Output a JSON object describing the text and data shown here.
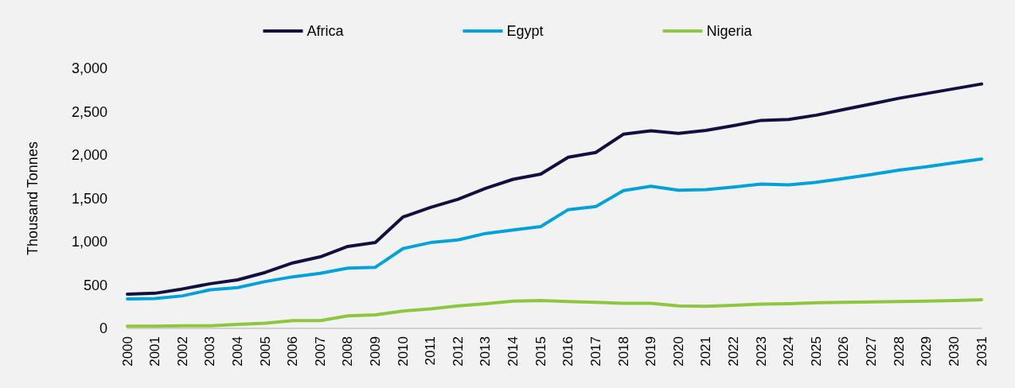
{
  "chart_data": {
    "type": "line",
    "ylabel": "Thousand Tonnes",
    "categories": [
      "2000",
      "2001",
      "2002",
      "2003",
      "2004",
      "2005",
      "2006",
      "2007",
      "2008",
      "2009",
      "2010",
      "2011",
      "2012",
      "2013",
      "2014",
      "2015",
      "2016",
      "2017",
      "2018",
      "2019",
      "2020",
      "2021",
      "2022",
      "2023",
      "2024",
      "2025",
      "2026",
      "2027",
      "2028",
      "2029",
      "2030",
      "2031"
    ],
    "series": [
      {
        "name": "Africa",
        "color": "#13103f",
        "values": [
          395,
          405,
          455,
          515,
          560,
          645,
          755,
          825,
          945,
          990,
          1285,
          1395,
          1490,
          1615,
          1720,
          1780,
          1975,
          2030,
          2240,
          2280,
          2250,
          2285,
          2340,
          2400,
          2410,
          2460,
          2525,
          2590,
          2655,
          2710,
          2765,
          2820
        ]
      },
      {
        "name": "Egypt",
        "color": "#00a3d9",
        "values": [
          340,
          345,
          375,
          445,
          470,
          540,
          595,
          635,
          695,
          705,
          920,
          990,
          1020,
          1095,
          1135,
          1175,
          1370,
          1405,
          1590,
          1640,
          1595,
          1600,
          1630,
          1665,
          1655,
          1685,
          1730,
          1775,
          1825,
          1865,
          1910,
          1955
        ]
      },
      {
        "name": "Nigeria",
        "color": "#8dc63f",
        "values": [
          25,
          25,
          30,
          30,
          45,
          60,
          90,
          90,
          145,
          155,
          200,
          225,
          260,
          285,
          315,
          320,
          310,
          300,
          290,
          290,
          260,
          255,
          265,
          280,
          285,
          295,
          300,
          305,
          310,
          315,
          320,
          330
        ]
      }
    ],
    "ylim": [
      0,
      3000
    ],
    "yticks": [
      0,
      500,
      {
        "value": 1000,
        "label": "1,000"
      },
      {
        "value": 1500,
        "label": "1,500"
      },
      {
        "value": 2000,
        "label": "2,000"
      },
      {
        "value": 2500,
        "label": "2,500"
      },
      {
        "value": 3000,
        "label": "3,000"
      }
    ],
    "grid": false,
    "legend": "top",
    "marker": "none",
    "line_style": "solid"
  }
}
